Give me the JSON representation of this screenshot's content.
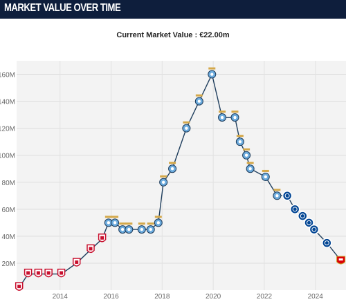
{
  "header": {
    "title": "MARKET VALUE OVER TIME"
  },
  "subtitle": "Current Market Value : €22.00m",
  "colors": {
    "header_bg": "#0e1e3c",
    "plot_bg": "#f3f3f3",
    "line": "#1e3d5c",
    "liverpool": "#c8102e",
    "man_city": "#6cabdd",
    "chelsea": "#034694",
    "arsenal": "#db0007"
  },
  "chart_data": {
    "type": "line",
    "title": "",
    "xlabel": "",
    "ylabel": "",
    "x_ticks": [
      "2014",
      "2016",
      "2018",
      "2020",
      "2022",
      "2024"
    ],
    "y_ticks": [
      "20M",
      "40M",
      "60M",
      "80M",
      "100M",
      "120M",
      "140M",
      "160M"
    ],
    "xlim": [
      2012.3,
      2025.2
    ],
    "ylim": [
      0,
      170
    ],
    "grid": true,
    "series": [
      {
        "values_unit": "€m",
        "points": [
          {
            "x": 2012.4,
            "y": 2,
            "club": "liverpool"
          },
          {
            "x": 2012.75,
            "y": 12,
            "club": "liverpool"
          },
          {
            "x": 2013.15,
            "y": 12,
            "club": "liverpool"
          },
          {
            "x": 2013.55,
            "y": 12,
            "club": "liverpool"
          },
          {
            "x": 2014.05,
            "y": 12,
            "club": "liverpool"
          },
          {
            "x": 2014.65,
            "y": 20,
            "club": "liverpool"
          },
          {
            "x": 2015.2,
            "y": 30,
            "club": "liverpool"
          },
          {
            "x": 2015.65,
            "y": 38,
            "club": "liverpool"
          },
          {
            "x": 2015.9,
            "y": 50,
            "club": "man_city"
          },
          {
            "x": 2016.15,
            "y": 50,
            "club": "man_city"
          },
          {
            "x": 2016.45,
            "y": 45,
            "club": "man_city"
          },
          {
            "x": 2016.7,
            "y": 45,
            "club": "man_city"
          },
          {
            "x": 2017.2,
            "y": 45,
            "club": "man_city"
          },
          {
            "x": 2017.55,
            "y": 45,
            "club": "man_city"
          },
          {
            "x": 2017.85,
            "y": 50,
            "club": "man_city"
          },
          {
            "x": 2018.05,
            "y": 80,
            "club": "man_city"
          },
          {
            "x": 2018.4,
            "y": 90,
            "club": "man_city"
          },
          {
            "x": 2018.95,
            "y": 120,
            "club": "man_city"
          },
          {
            "x": 2019.45,
            "y": 140,
            "club": "man_city"
          },
          {
            "x": 2019.95,
            "y": 160,
            "club": "man_city"
          },
          {
            "x": 2020.35,
            "y": 128,
            "club": "man_city"
          },
          {
            "x": 2020.85,
            "y": 128,
            "club": "man_city"
          },
          {
            "x": 2021.05,
            "y": 110,
            "club": "man_city"
          },
          {
            "x": 2021.3,
            "y": 100,
            "club": "man_city"
          },
          {
            "x": 2021.45,
            "y": 90,
            "club": "man_city"
          },
          {
            "x": 2022.05,
            "y": 84,
            "club": "man_city"
          },
          {
            "x": 2022.5,
            "y": 70,
            "club": "man_city"
          },
          {
            "x": 2022.9,
            "y": 70,
            "club": "chelsea"
          },
          {
            "x": 2023.2,
            "y": 60,
            "club": "chelsea"
          },
          {
            "x": 2023.5,
            "y": 55,
            "club": "chelsea"
          },
          {
            "x": 2023.75,
            "y": 50,
            "club": "chelsea"
          },
          {
            "x": 2023.95,
            "y": 45,
            "club": "chelsea"
          },
          {
            "x": 2024.45,
            "y": 35,
            "club": "chelsea"
          },
          {
            "x": 2025.0,
            "y": 22,
            "club": "arsenal"
          }
        ]
      }
    ]
  }
}
